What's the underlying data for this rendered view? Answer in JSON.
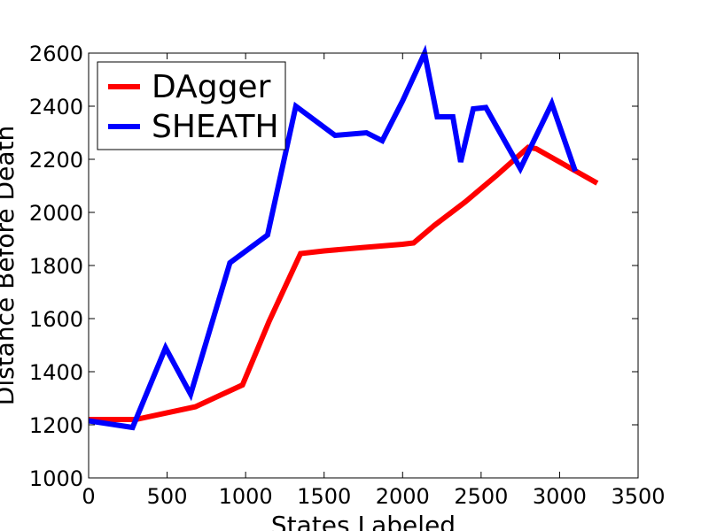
{
  "chart_data": {
    "type": "line",
    "title": "",
    "xlabel": "States Labeled",
    "ylabel": "Distance Before Death",
    "xlim": [
      0,
      3500
    ],
    "ylim": [
      1000,
      2600
    ],
    "xticks": [
      0,
      500,
      1000,
      1500,
      2000,
      2500,
      3000,
      3500
    ],
    "yticks": [
      1000,
      1200,
      1400,
      1600,
      1800,
      2000,
      2200,
      2400,
      2600
    ],
    "grid": false,
    "legend_position": "top-left",
    "series": [
      {
        "name": "DAgger",
        "color": "#ff0000",
        "x": [
          0,
          300,
          680,
          980,
          1150,
          1350,
          1500,
          1750,
          2000,
          2070,
          2200,
          2400,
          2600,
          2800,
          2850,
          3000,
          3240
        ],
        "y": [
          1220,
          1220,
          1268,
          1350,
          1590,
          1845,
          1855,
          1868,
          1880,
          1885,
          1950,
          2040,
          2140,
          2245,
          2240,
          2190,
          2110
        ]
      },
      {
        "name": "SHEATH",
        "color": "#0000ff",
        "x": [
          0,
          280,
          490,
          650,
          900,
          1140,
          1320,
          1570,
          1770,
          1870,
          2000,
          2140,
          2220,
          2320,
          2370,
          2450,
          2530,
          2750,
          2950,
          3100
        ],
        "y": [
          1215,
          1190,
          1490,
          1315,
          1810,
          1915,
          2400,
          2290,
          2300,
          2270,
          2420,
          2600,
          2360,
          2360,
          2190,
          2390,
          2395,
          2165,
          2410,
          2155
        ]
      }
    ]
  }
}
